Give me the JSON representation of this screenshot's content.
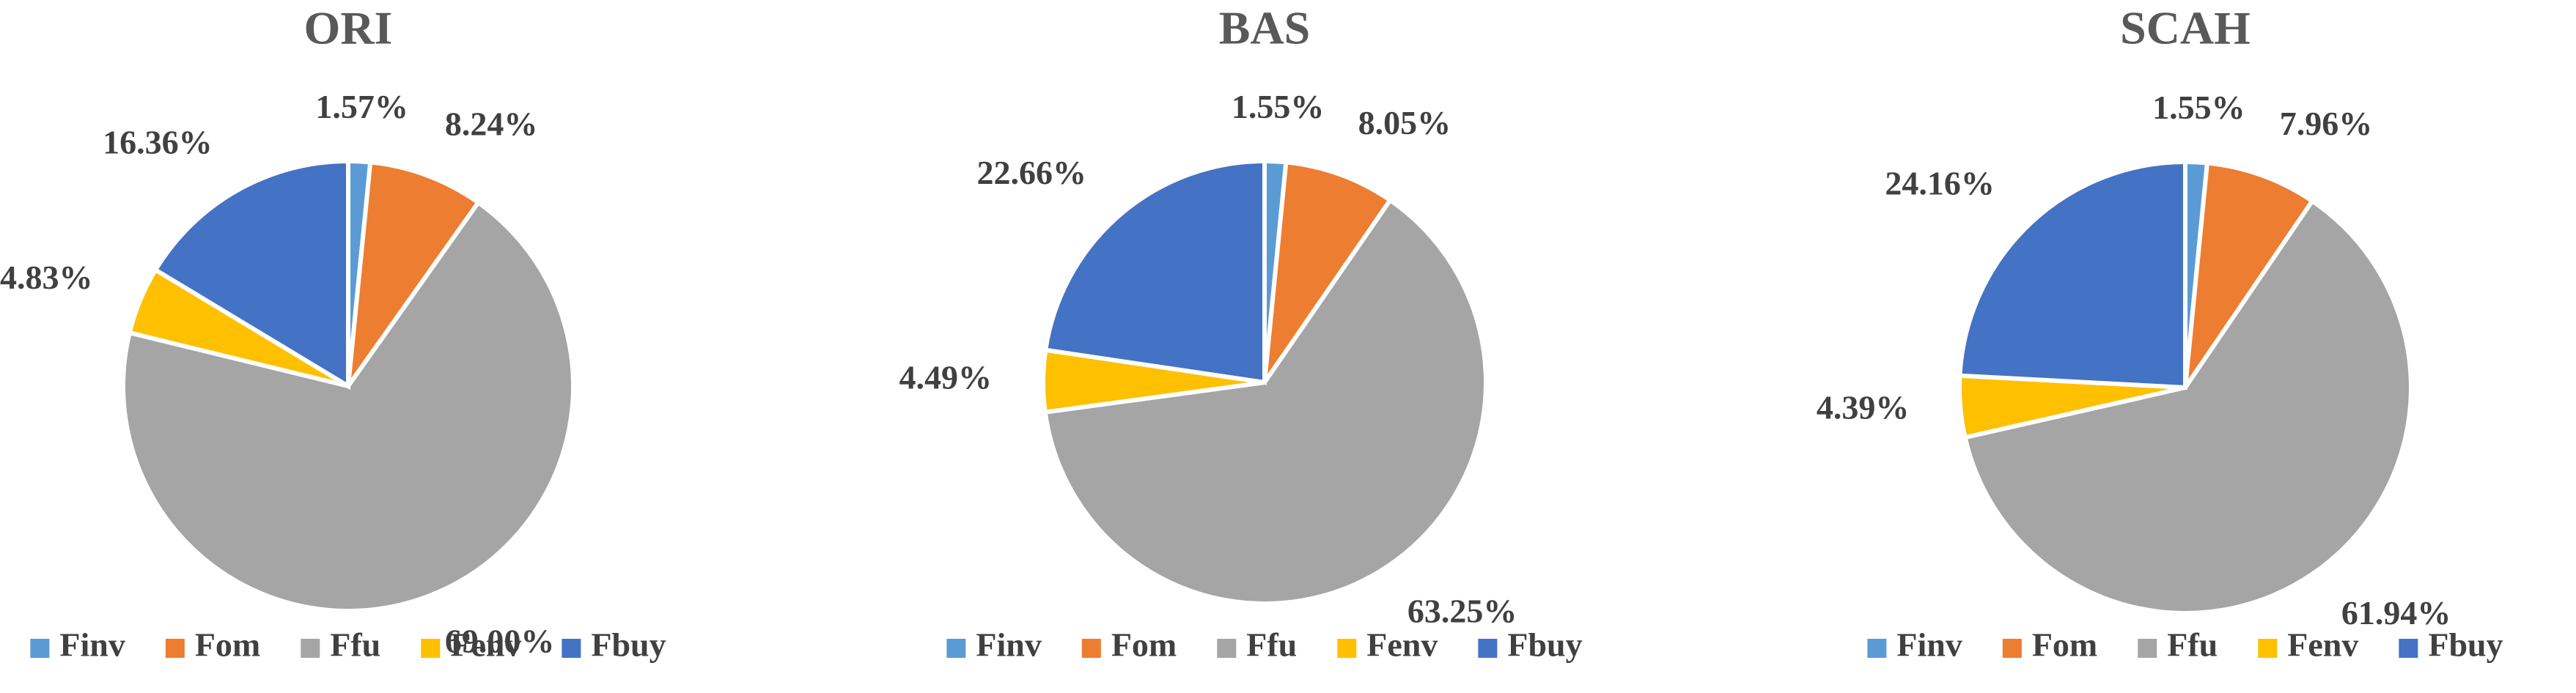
{
  "chart_data": [
    {
      "type": "pie",
      "title": "ORI",
      "categories": [
        "Finv",
        "Fom",
        "Ffu",
        "Fenv",
        "Fbuy"
      ],
      "values": [
        1.57,
        8.24,
        69,
        4.83,
        16.36
      ],
      "value_labels": [
        "1.57%",
        "8.24%",
        "69.00%",
        "4.83%",
        "16.36%"
      ],
      "colors": [
        "#5b9bd5",
        "#ed7d31",
        "#a5a5a5",
        "#ffc000",
        "#4472c4"
      ]
    },
    {
      "type": "pie",
      "title": "BAS",
      "categories": [
        "Finv",
        "Fom",
        "Ffu",
        "Fenv",
        "Fbuy"
      ],
      "values": [
        1.55,
        8.05,
        63.25,
        4.49,
        22.66
      ],
      "value_labels": [
        "1.55%",
        "8.05%",
        "63.25%",
        "4.49%",
        "22.66%"
      ],
      "colors": [
        "#5b9bd5",
        "#ed7d31",
        "#a5a5a5",
        "#ffc000",
        "#4472c4"
      ]
    },
    {
      "type": "pie",
      "title": "SCAH",
      "categories": [
        "Finv",
        "Fom",
        "Ffu",
        "Fenv",
        "Fbuy"
      ],
      "values": [
        1.55,
        7.96,
        61.94,
        4.39,
        24.16
      ],
      "value_labels": [
        "1.55%",
        "7.96%",
        "61.94%",
        "4.39%",
        "24.16%"
      ],
      "colors": [
        "#5b9bd5",
        "#ed7d31",
        "#a5a5a5",
        "#ffc000",
        "#4472c4"
      ]
    }
  ]
}
